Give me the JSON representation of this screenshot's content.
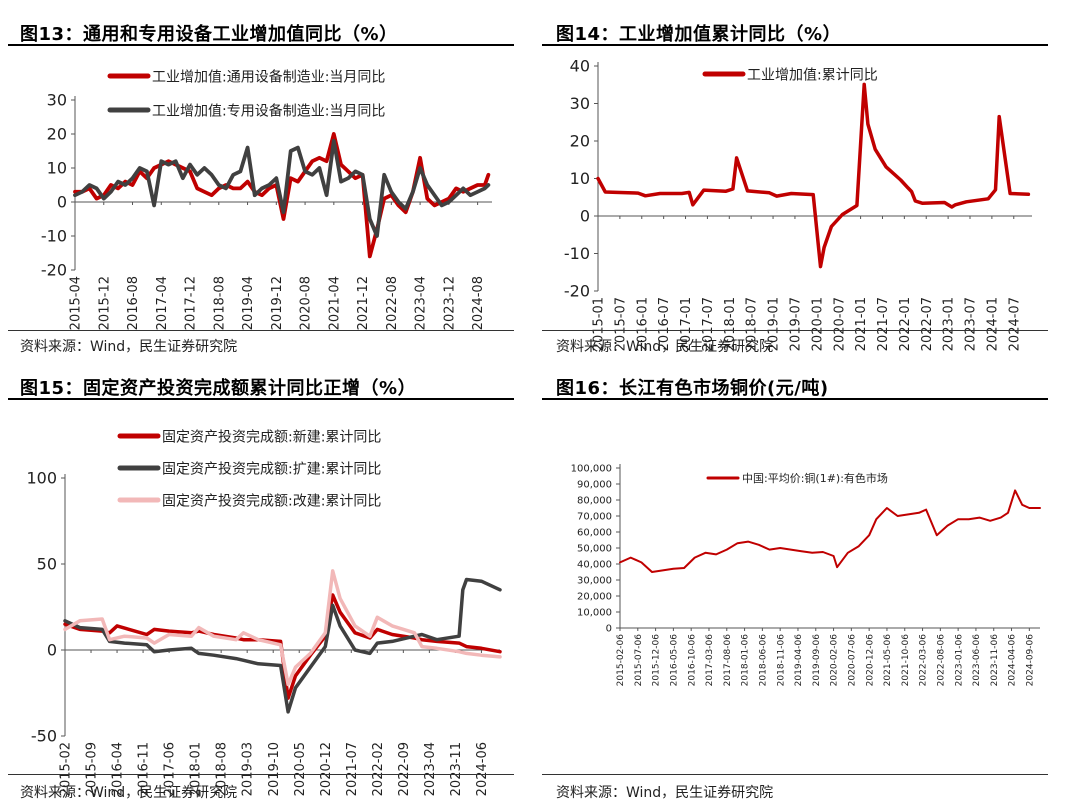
{
  "panels": [
    {
      "title": "图13：通用和专用设备工业增加值同比（%）",
      "source": "资料来源：Wind，民生证券研究院"
    },
    {
      "title": "图14：工业增加值累计同比（%）",
      "source": "资料来源：Wind，民生证券研究院"
    },
    {
      "title": "图15：固定资产投资完成额累计同比正增（%）",
      "source": "资料来源：Wind，民生证券研究院"
    },
    {
      "title": "图16：长江有色市场铜价(元/吨)",
      "source": "资料来源：Wind，民生证券研究院"
    }
  ],
  "chart_data": [
    {
      "type": "line",
      "title": "图13：通用和专用设备工业增加值同比（%）",
      "ylim": [
        -20,
        30
      ],
      "yticks": [
        -20,
        -10,
        0,
        10,
        20,
        30
      ],
      "xlim": [
        "2015-04",
        "2024-12"
      ],
      "xtick_labels": [
        "2015-04",
        "2015-12",
        "2016-08",
        "2017-04",
        "2017-12",
        "2018-08",
        "2019-04",
        "2019-12",
        "2020-08",
        "2021-04",
        "2021-12",
        "2022-08",
        "2023-04",
        "2023-12",
        "2024-08"
      ],
      "legend": "top",
      "colors": [
        "#c00000",
        "#404040"
      ],
      "series": [
        {
          "name": "工业增加值:通用设备制造业:当月同比",
          "x": [
            "2015-04",
            "2015-06",
            "2015-08",
            "2015-10",
            "2015-12",
            "2016-02",
            "2016-04",
            "2016-06",
            "2016-08",
            "2016-10",
            "2016-12",
            "2017-02",
            "2017-04",
            "2017-06",
            "2017-08",
            "2017-10",
            "2017-12",
            "2018-02",
            "2018-04",
            "2018-06",
            "2018-08",
            "2018-10",
            "2018-12",
            "2019-02",
            "2019-04",
            "2019-06",
            "2019-08",
            "2019-10",
            "2019-12",
            "2020-02",
            "2020-04",
            "2020-06",
            "2020-08",
            "2020-10",
            "2020-12",
            "2021-02",
            "2021-04",
            "2021-06",
            "2021-08",
            "2021-10",
            "2021-12",
            "2022-02",
            "2022-04",
            "2022-06",
            "2022-08",
            "2022-10",
            "2022-12",
            "2023-02",
            "2023-04",
            "2023-06",
            "2023-08",
            "2023-10",
            "2023-12",
            "2024-02",
            "2024-04",
            "2024-06",
            "2024-08",
            "2024-10",
            "2024-11"
          ],
          "values": [
            3,
            3,
            4,
            1,
            2,
            5,
            4,
            6,
            5,
            9,
            7,
            10,
            11,
            12,
            11,
            10,
            9,
            4,
            3,
            2,
            4,
            5,
            4,
            4,
            6,
            3,
            2,
            4,
            5,
            -5,
            7,
            6,
            9,
            12,
            13,
            12,
            20,
            11,
            9,
            7,
            8,
            -16,
            -8,
            1,
            2,
            -1,
            -3,
            3,
            13,
            1,
            -1,
            0,
            1,
            4,
            3,
            4,
            5,
            5,
            8
          ]
        },
        {
          "name": "工业增加值:专用设备制造业:当月同比",
          "x": [
            "2015-04",
            "2015-06",
            "2015-08",
            "2015-10",
            "2015-12",
            "2016-02",
            "2016-04",
            "2016-06",
            "2016-08",
            "2016-10",
            "2016-12",
            "2017-02",
            "2017-04",
            "2017-06",
            "2017-08",
            "2017-10",
            "2017-12",
            "2018-02",
            "2018-04",
            "2018-06",
            "2018-08",
            "2018-10",
            "2018-12",
            "2019-02",
            "2019-04",
            "2019-06",
            "2019-08",
            "2019-10",
            "2019-12",
            "2020-02",
            "2020-04",
            "2020-06",
            "2020-08",
            "2020-10",
            "2020-12",
            "2021-02",
            "2021-04",
            "2021-06",
            "2021-08",
            "2021-10",
            "2021-12",
            "2022-02",
            "2022-04",
            "2022-06",
            "2022-08",
            "2022-10",
            "2022-12",
            "2023-02",
            "2023-04",
            "2023-06",
            "2023-08",
            "2023-10",
            "2023-12",
            "2024-02",
            "2024-04",
            "2024-06",
            "2024-08",
            "2024-10",
            "2024-11"
          ],
          "values": [
            2,
            3,
            5,
            4,
            1,
            3,
            6,
            5,
            7,
            10,
            9,
            -1,
            12,
            11,
            12,
            7,
            11,
            8,
            10,
            8,
            5,
            4,
            8,
            9,
            16,
            2,
            4,
            5,
            7,
            -3,
            15,
            16,
            9,
            8,
            10,
            2,
            18,
            6,
            7,
            9,
            8,
            -5,
            -10,
            8,
            3,
            0,
            -2,
            3,
            10,
            5,
            2,
            -1,
            0,
            2,
            4,
            2,
            3,
            4,
            5
          ]
        }
      ]
    },
    {
      "type": "line",
      "title": "图14：工业增加值累计同比（%）",
      "ylim": [
        -20,
        40
      ],
      "yticks": [
        -20,
        -10,
        0,
        10,
        20,
        30,
        40
      ],
      "xlim": [
        "2015-01",
        "2024-12"
      ],
      "xtick_labels": [
        "2015-01",
        "2015-07",
        "2016-01",
        "2016-07",
        "2017-01",
        "2017-07",
        "2018-01",
        "2018-07",
        "2019-01",
        "2019-07",
        "2020-01",
        "2020-07",
        "2021-01",
        "2021-07",
        "2022-01",
        "2022-07",
        "2023-01",
        "2023-07",
        "2024-01",
        "2024-07"
      ],
      "legend": "top",
      "colors": [
        "#c00000"
      ],
      "series": [
        {
          "name": "工业增加值:累计同比",
          "x": [
            "2015-01",
            "2015-03",
            "2015-06",
            "2015-12",
            "2016-02",
            "2016-06",
            "2016-12",
            "2017-02",
            "2017-03",
            "2017-06",
            "2017-12",
            "2018-02",
            "2018-03",
            "2018-06",
            "2018-12",
            "2019-02",
            "2019-06",
            "2019-12",
            "2020-02",
            "2020-03",
            "2020-05",
            "2020-08",
            "2020-12",
            "2021-02",
            "2021-03",
            "2021-05",
            "2021-08",
            "2021-12",
            "2022-02",
            "2022-03",
            "2022-04",
            "2022-06",
            "2022-12",
            "2023-02",
            "2023-03",
            "2023-06",
            "2023-12",
            "2024-02",
            "2024-03",
            "2024-06",
            "2024-11"
          ],
          "values": [
            10,
            6.4,
            6.3,
            6.1,
            5.4,
            6,
            6,
            6.3,
            3,
            6.9,
            6.6,
            7.2,
            15.5,
            6.7,
            6.2,
            5.3,
            6,
            5.7,
            -13.5,
            -8.4,
            -2.8,
            0.4,
            2.8,
            35.1,
            24.5,
            17.8,
            13.1,
            9.6,
            7.5,
            6.5,
            4,
            3.4,
            3.6,
            2.4,
            3,
            3.8,
            4.6,
            7,
            26.5,
            6,
            5.8
          ]
        }
      ]
    },
    {
      "type": "line",
      "title": "图15：固定资产投资完成额累计同比正增（%）",
      "ylim": [
        -50,
        100
      ],
      "yticks": [
        -50,
        0,
        50,
        100
      ],
      "xlim": [
        "2015-02",
        "2024-11"
      ],
      "xtick_labels": [
        "2015-02",
        "2015-09",
        "2016-04",
        "2016-11",
        "2017-06",
        "2018-01",
        "2018-08",
        "2019-03",
        "2019-10",
        "2020-05",
        "2020-12",
        "2021-07",
        "2022-02",
        "2022-09",
        "2023-04",
        "2023-11",
        "2024-06"
      ],
      "legend": "top",
      "colors": [
        "#c00000",
        "#404040",
        "#f2b8b8"
      ],
      "series": [
        {
          "name": "固定资产投资完成额:新建:累计同比",
          "x": [
            "2015-02",
            "2015-06",
            "2015-12",
            "2016-02",
            "2016-04",
            "2016-12",
            "2017-02",
            "2017-06",
            "2017-12",
            "2018-02",
            "2018-06",
            "2018-12",
            "2019-02",
            "2019-06",
            "2019-12",
            "2020-02",
            "2020-04",
            "2020-08",
            "2020-12",
            "2021-02",
            "2021-04",
            "2021-08",
            "2021-12",
            "2022-02",
            "2022-06",
            "2022-12",
            "2023-02",
            "2023-06",
            "2023-12",
            "2024-02",
            "2024-06",
            "2024-11"
          ],
          "values": [
            15,
            12,
            11,
            10,
            14,
            9,
            12,
            11,
            10,
            11,
            9,
            7,
            6,
            6,
            5,
            -28,
            -15,
            -3,
            8,
            32,
            22,
            10,
            7,
            12,
            9,
            7,
            6,
            5,
            4,
            2,
            1,
            -1
          ]
        },
        {
          "name": "固定资产投资完成额:扩建:累计同比",
          "x": [
            "2015-02",
            "2015-06",
            "2015-12",
            "2016-02",
            "2016-06",
            "2016-12",
            "2017-02",
            "2017-06",
            "2017-12",
            "2018-02",
            "2018-06",
            "2018-12",
            "2019-02",
            "2019-06",
            "2019-12",
            "2020-02",
            "2020-04",
            "2020-08",
            "2020-12",
            "2021-02",
            "2021-04",
            "2021-08",
            "2021-12",
            "2022-02",
            "2022-06",
            "2022-12",
            "2023-02",
            "2023-06",
            "2023-12",
            "2024-01",
            "2024-02",
            "2024-06",
            "2024-11"
          ],
          "values": [
            17,
            13,
            12,
            5,
            4,
            3,
            -1,
            0,
            1,
            -2,
            -3,
            -5,
            -6,
            -8,
            -9,
            -36,
            -22,
            -10,
            2,
            26,
            14,
            0,
            -2,
            4,
            5,
            8,
            9,
            6,
            8,
            35,
            41,
            40,
            35
          ]
        },
        {
          "name": "固定资产投资完成额:改建:累计同比",
          "x": [
            "2015-02",
            "2015-06",
            "2015-12",
            "2016-02",
            "2016-06",
            "2016-12",
            "2017-02",
            "2017-06",
            "2017-12",
            "2018-02",
            "2018-06",
            "2018-12",
            "2019-02",
            "2019-06",
            "2019-12",
            "2020-02",
            "2020-04",
            "2020-08",
            "2020-12",
            "2021-02",
            "2021-04",
            "2021-08",
            "2021-12",
            "2022-02",
            "2022-06",
            "2022-12",
            "2023-02",
            "2023-06",
            "2023-12",
            "2024-02",
            "2024-06",
            "2024-11"
          ],
          "values": [
            12,
            17,
            18,
            6,
            8,
            7,
            4,
            9,
            8,
            13,
            8,
            6,
            10,
            6,
            3,
            -20,
            -10,
            -2,
            10,
            46,
            30,
            14,
            8,
            19,
            14,
            10,
            2,
            1,
            -1,
            -2,
            -3,
            -4
          ]
        }
      ]
    },
    {
      "type": "line",
      "title": "图16：长江有色市场铜价(元/吨)",
      "ylim": [
        0,
        100000
      ],
      "yticks": [
        0,
        10000,
        20000,
        30000,
        40000,
        50000,
        60000,
        70000,
        80000,
        90000,
        100000
      ],
      "ytick_labels": [
        "0",
        "10,000",
        "20,000",
        "30,000",
        "40,000",
        "50,000",
        "60,000",
        "70,000",
        "80,000",
        "90,000",
        "100,000"
      ],
      "xlim": [
        "2015-02",
        "2024-12"
      ],
      "xtick_labels": [
        "2015-02-06",
        "2015-07-06",
        "2015-12-06",
        "2016-05-06",
        "2016-10-06",
        "2017-03-06",
        "2017-08-06",
        "2018-01-06",
        "2018-06-06",
        "2018-11-06",
        "2019-04-06",
        "2019-09-06",
        "2020-02-06",
        "2020-07-06",
        "2020-12-06",
        "2021-05-06",
        "2021-10-06",
        "2022-03-06",
        "2022-08-06",
        "2023-01-06",
        "2023-06-06",
        "2023-11-06",
        "2024-04-06",
        "2024-09-06"
      ],
      "legend": "top",
      "colors": [
        "#c00000"
      ],
      "series": [
        {
          "name": "中国:平均价:铜(1#):有色市场",
          "x": [
            "2015-02",
            "2015-05",
            "2015-08",
            "2015-11",
            "2016-02",
            "2016-05",
            "2016-08",
            "2016-11",
            "2017-02",
            "2017-05",
            "2017-08",
            "2017-11",
            "2018-02",
            "2018-05",
            "2018-08",
            "2018-11",
            "2019-02",
            "2019-05",
            "2019-08",
            "2019-11",
            "2020-02",
            "2020-03",
            "2020-06",
            "2020-09",
            "2020-12",
            "2021-02",
            "2021-05",
            "2021-08",
            "2021-11",
            "2022-02",
            "2022-04",
            "2022-07",
            "2022-10",
            "2023-01",
            "2023-04",
            "2023-07",
            "2023-10",
            "2024-01",
            "2024-03",
            "2024-05",
            "2024-07",
            "2024-09",
            "2024-12"
          ],
          "values": [
            41000,
            44000,
            41000,
            35000,
            36000,
            37000,
            37500,
            44000,
            47000,
            46000,
            49000,
            53000,
            54000,
            52000,
            49000,
            50000,
            49000,
            48000,
            47000,
            47500,
            45000,
            38000,
            47000,
            51000,
            58000,
            68000,
            75000,
            70000,
            71000,
            72000,
            74000,
            58000,
            64000,
            68000,
            68000,
            69000,
            67000,
            69000,
            72000,
            86000,
            77000,
            75000,
            75000
          ]
        }
      ]
    }
  ]
}
